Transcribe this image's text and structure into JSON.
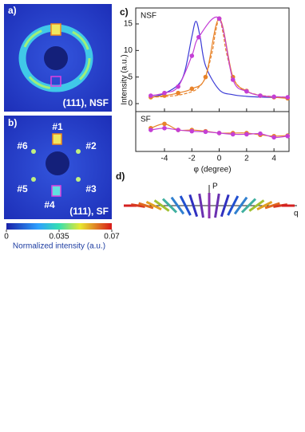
{
  "panels": {
    "a": {
      "label": "a)",
      "caption": "(111), NSF"
    },
    "b": {
      "label": "b)",
      "caption": "(111), SF",
      "spots": [
        "#1",
        "#2",
        "#3",
        "#4",
        "#5",
        "#6"
      ]
    },
    "d": {
      "label": "d)",
      "axis_up": "P",
      "axis_right": "q"
    }
  },
  "colorbar": {
    "ticks": [
      0,
      0.035,
      0.07
    ],
    "label": "Normalized intensity (a.u.)"
  },
  "chart_data": [
    {
      "type": "line",
      "panel": "c)",
      "label": "NSF",
      "ylabel": "Intensity (a.u.)",
      "xlim": [
        -6.1,
        5.1
      ],
      "ylim": [
        -1.5,
        18
      ],
      "yticks": [
        0,
        5,
        10,
        15
      ],
      "series": [
        {
          "color": "#3b3bd6",
          "marker": false,
          "dash": false,
          "x": [
            -5,
            -4,
            -3,
            -2.5,
            -2,
            -1.7,
            -1.4,
            -1,
            0,
            1,
            2,
            3,
            4,
            5
          ],
          "values": [
            1.17,
            1.92,
            3.55,
            6.22,
            12.6,
            15.5,
            12.6,
            7.14,
            2.61,
            1.68,
            1.37,
            1.23,
            1.16,
            1.12
          ]
        },
        {
          "color": "#e8832a",
          "marker": false,
          "dash": true,
          "x": [
            -5,
            -4,
            -3,
            -2,
            -1.5,
            -1,
            -0.5,
            -0.3,
            0,
            0.3,
            0.5,
            1,
            1.5,
            2,
            3,
            4,
            5
          ],
          "values": [
            1.21,
            1.33,
            1.58,
            2.25,
            3.07,
            5.0,
            9.9,
            13.0,
            16,
            13.0,
            9.9,
            5.0,
            3.07,
            2.25,
            1.58,
            1.33,
            1.21
          ]
        },
        {
          "color": "#e8832a",
          "marker": true,
          "dash": false,
          "x": [
            -5,
            -4,
            -3,
            -2,
            -1,
            0,
            1,
            2,
            3,
            4,
            5
          ],
          "values": [
            1.2,
            1.5,
            2.0,
            2.8,
            5.0,
            16.0,
            5.0,
            2.4,
            1.5,
            1.2,
            1.0
          ]
        },
        {
          "color": "#c43fd6",
          "marker": true,
          "dash": false,
          "x": [
            -5,
            -4,
            -3,
            -2,
            -1.5,
            0,
            1,
            2,
            3,
            4,
            5
          ],
          "values": [
            1.5,
            2.0,
            3.2,
            9.0,
            12.5,
            16.0,
            4.5,
            2.3,
            1.5,
            1.3,
            1.2
          ]
        }
      ]
    },
    {
      "type": "line",
      "label": "SF",
      "xlabel": "φ (degree)",
      "xlim": [
        -6.1,
        5.1
      ],
      "ylim": [
        0,
        6.5
      ],
      "xticks": [
        -4,
        -2,
        0,
        2,
        4
      ],
      "series": [
        {
          "color": "#e8832a",
          "marker": true,
          "dash": false,
          "x": [
            -5,
            -4,
            -3,
            -2,
            -1,
            0,
            1,
            2,
            3,
            4,
            5
          ],
          "values": [
            3.8,
            4.5,
            3.5,
            3.5,
            3.3,
            3.0,
            3.0,
            3.0,
            2.7,
            2.5,
            2.6
          ]
        },
        {
          "color": "#c43fd6",
          "marker": true,
          "dash": false,
          "x": [
            -5,
            -4,
            -3,
            -2,
            -1,
            0,
            1,
            2,
            3,
            4,
            5
          ],
          "values": [
            3.5,
            3.8,
            3.5,
            3.3,
            3.2,
            3.0,
            2.8,
            2.8,
            2.9,
            2.3,
            2.5
          ]
        }
      ]
    }
  ]
}
